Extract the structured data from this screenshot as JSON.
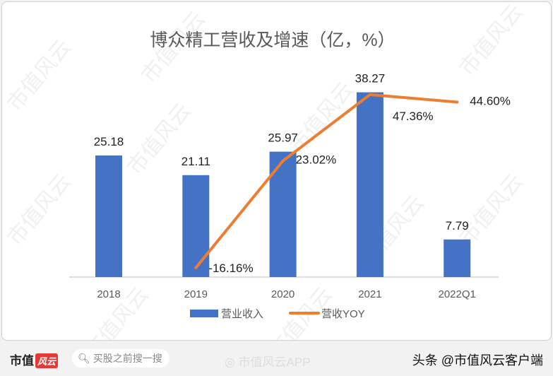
{
  "chart_data": {
    "type": "bar+line",
    "title": "博众精工营收及增速（亿，%）",
    "categories": [
      "2018",
      "2019",
      "2020",
      "2021",
      "2022Q1"
    ],
    "series": [
      {
        "name": "营业收入",
        "type": "bar",
        "values": [
          25.18,
          21.11,
          25.97,
          38.27,
          7.79
        ],
        "labels": [
          "25.18",
          "21.11",
          "25.97",
          "38.27",
          "7.79"
        ],
        "color": "#4472c4"
      },
      {
        "name": "营收YOY",
        "type": "line",
        "values": [
          null,
          -16.16,
          23.02,
          47.36,
          44.6
        ],
        "labels": [
          "",
          "-16.16%",
          "23.02%",
          "47.36%",
          "44.60%"
        ],
        "color": "#ed7d31"
      }
    ],
    "legend": "bottom",
    "grid": false
  },
  "watermark": "市值风云",
  "footer": {
    "brand": "市值",
    "brand_logo": "风云",
    "search_placeholder": "买股之前搜一搜",
    "weibo": "市值风云APP",
    "toutiao": "头条 @市值风云客户端"
  }
}
